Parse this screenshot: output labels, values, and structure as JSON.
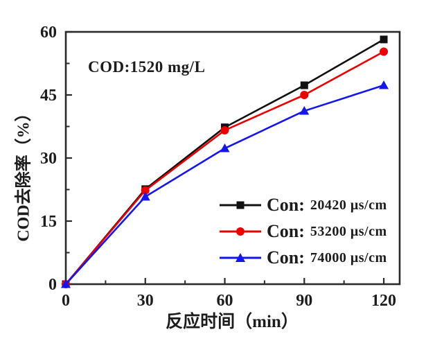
{
  "chart_data": {
    "type": "line",
    "x": [
      0,
      30,
      60,
      90,
      120
    ],
    "series": [
      {
        "name": "Con: 20420 μs/cm",
        "legend_prefix": "Con:",
        "legend_value": "20420 μs/cm",
        "color": "#111111",
        "marker": "square",
        "values": [
          0,
          22.6,
          37.3,
          47.3,
          58.2
        ]
      },
      {
        "name": "Con: 53200 μs/cm",
        "legend_prefix": "Con:",
        "legend_value": "53200 μs/cm",
        "color": "#ee0000",
        "marker": "circle",
        "values": [
          0,
          22.3,
          36.6,
          45.0,
          55.3
        ]
      },
      {
        "name": "Con: 74000 μs/cm",
        "legend_prefix": "Con:",
        "legend_value": "74000 μs/cm",
        "color": "#1515ef",
        "marker": "triangle",
        "values": [
          0,
          20.8,
          32.3,
          41.2,
          47.3
        ]
      }
    ],
    "annotation": "COD:1520 mg/L",
    "xlabel": "反应时间（min）",
    "ylabel": "COD去除率（%）",
    "x_ticks": [
      0,
      30,
      60,
      90,
      120
    ],
    "x_minor_ticks": [
      15,
      45,
      75,
      105
    ],
    "y_ticks": [
      0,
      15,
      30,
      45,
      60
    ],
    "y_minor_ticks": [
      7.5,
      22.5,
      37.5,
      52.5
    ],
    "xlim": [
      0,
      126
    ],
    "ylim": [
      0,
      60
    ],
    "grid": false,
    "legend_position": "inside lower right",
    "axis_color": "#2a2a2a",
    "background_color": "#ffffff"
  }
}
